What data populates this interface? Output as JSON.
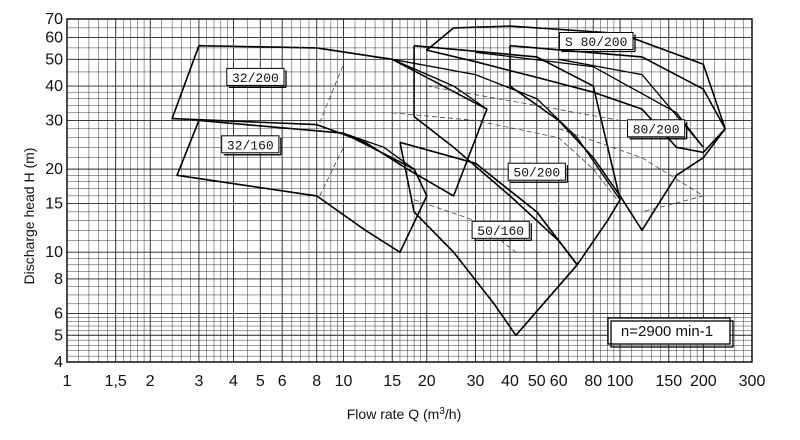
{
  "chart_data": {
    "type": "line",
    "xscale": "log",
    "yscale": "log",
    "xlim": [
      1,
      300
    ],
    "ylim": [
      4,
      70
    ],
    "grid": true,
    "xlabel_text": "Flow rate Q (m",
    "xlabel_sup": "3",
    "xlabel_tail": "/h)",
    "ylabel": "Discharge head H (m)",
    "x_ticks": [
      {
        "value": 1,
        "label": "1"
      },
      {
        "value": 1.5,
        "label": "1,5"
      },
      {
        "value": 2,
        "label": "2"
      },
      {
        "value": 3,
        "label": "3"
      },
      {
        "value": 4,
        "label": "4"
      },
      {
        "value": 5,
        "label": "5"
      },
      {
        "value": 6,
        "label": "6"
      },
      {
        "value": 8,
        "label": "8"
      },
      {
        "value": 10,
        "label": "10"
      },
      {
        "value": 15,
        "label": "15"
      },
      {
        "value": 20,
        "label": "20"
      },
      {
        "value": 30,
        "label": "30"
      },
      {
        "value": 40,
        "label": "40"
      },
      {
        "value": 50,
        "label": "50"
      },
      {
        "value": 60,
        "label": "60"
      },
      {
        "value": 80,
        "label": "80"
      },
      {
        "value": 100,
        "label": "100"
      },
      {
        "value": 150,
        "label": "150"
      },
      {
        "value": 200,
        "label": "200"
      },
      {
        "value": 300,
        "label": "300"
      }
    ],
    "y_ticks": [
      {
        "value": 4,
        "label": "4"
      },
      {
        "value": 5,
        "label": "5"
      },
      {
        "value": 6,
        "label": "6"
      },
      {
        "value": 8,
        "label": "8"
      },
      {
        "value": 10,
        "label": "10"
      },
      {
        "value": 15,
        "label": "15"
      },
      {
        "value": 20,
        "label": "20"
      },
      {
        "value": 30,
        "label": "30"
      },
      {
        "value": 40,
        "label": "40"
      },
      {
        "value": 50,
        "label": "50"
      },
      {
        "value": 60,
        "label": "60"
      },
      {
        "value": 70,
        "label": "70"
      }
    ],
    "x_minor_grid": [
      1.1,
      1.2,
      1.3,
      1.4,
      1.5,
      1.6,
      1.7,
      1.8,
      1.9,
      2,
      2.2,
      2.4,
      2.6,
      2.8,
      3,
      3.2,
      3.4,
      3.6,
      3.8,
      4,
      4.5,
      5,
      5.5,
      6,
      6.5,
      7,
      7.5,
      8,
      8.5,
      9,
      9.5,
      10,
      11,
      12,
      13,
      14,
      15,
      16,
      17,
      18,
      19,
      20,
      22,
      24,
      26,
      28,
      30,
      32,
      34,
      36,
      38,
      40,
      45,
      50,
      55,
      60,
      65,
      70,
      75,
      80,
      85,
      90,
      95,
      100,
      110,
      120,
      130,
      140,
      150,
      160,
      170,
      180,
      190,
      200,
      220,
      240,
      260,
      280,
      300
    ],
    "y_minor_grid": [
      4,
      4.2,
      4.4,
      4.6,
      4.8,
      5,
      5.2,
      5.4,
      5.6,
      5.8,
      6,
      6.5,
      7,
      7.5,
      8,
      8.5,
      9,
      9.5,
      10,
      11,
      12,
      13,
      14,
      15,
      16,
      17,
      18,
      19,
      20,
      22,
      24,
      26,
      28,
      30,
      32,
      34,
      36,
      38,
      40,
      45,
      50,
      55,
      60,
      65,
      70
    ],
    "series": [
      {
        "name": "32/200",
        "label_x": 4.8,
        "label_y": 43,
        "envelope": [
          [
            3,
            56
          ],
          [
            8,
            55
          ],
          [
            15,
            50
          ],
          [
            33,
            33
          ],
          [
            25,
            16
          ],
          [
            17,
            20
          ],
          [
            12,
            25
          ],
          [
            8,
            29
          ],
          [
            2.4,
            30.5
          ],
          [
            3,
            56
          ]
        ],
        "curves": [
          [
            [
              8,
              55
            ],
            [
              15,
              50
            ],
            [
              25,
              40
            ],
            [
              33,
              33
            ]
          ]
        ],
        "dashed": [
          [
            [
              8.2,
              29.5
            ],
            [
              10,
              48
            ]
          ]
        ]
      },
      {
        "name": "32/160",
        "label_x": 4.6,
        "label_y": 24.5,
        "envelope": [
          [
            3,
            30
          ],
          [
            10,
            27
          ],
          [
            18,
            20
          ],
          [
            20,
            16
          ],
          [
            16,
            10
          ],
          [
            12,
            12
          ],
          [
            8,
            16
          ],
          [
            2.5,
            19
          ],
          [
            3,
            30
          ]
        ],
        "curves": [
          [
            [
              10,
              27
            ],
            [
              14,
              24
            ],
            [
              18,
              20
            ]
          ]
        ],
        "dashed": [
          [
            [
              8.2,
              16
            ],
            [
              10,
              24
            ]
          ]
        ]
      },
      {
        "name": "50/200",
        "label_x": 50,
        "label_y": 19.5,
        "envelope": [
          [
            18,
            56
          ],
          [
            50,
            51
          ],
          [
            80,
            40
          ],
          [
            100,
            15.5
          ],
          [
            90,
            13
          ],
          [
            70,
            9
          ],
          [
            60,
            11
          ],
          [
            40,
            16
          ],
          [
            25,
            24
          ],
          [
            18,
            31
          ],
          [
            18,
            56
          ]
        ],
        "curves": [
          [
            [
              15,
              50
            ],
            [
              30,
              44
            ],
            [
              50,
              36
            ],
            [
              70,
              26
            ],
            [
              100,
              15.5
            ]
          ]
        ],
        "dashed": [
          [
            [
              15,
              32
            ],
            [
              30,
              30
            ],
            [
              60,
              26
            ],
            [
              80,
              20
            ],
            [
              100,
              15
            ]
          ]
        ]
      },
      {
        "name": "50/160",
        "label_x": 37,
        "label_y": 12,
        "envelope": [
          [
            16,
            25
          ],
          [
            30,
            21
          ],
          [
            50,
            14
          ],
          [
            70,
            9
          ],
          [
            42,
            5
          ],
          [
            35,
            6.5
          ],
          [
            25,
            10
          ],
          [
            18,
            14
          ],
          [
            16,
            25
          ]
        ],
        "curves": [
          [
            [
              16,
              25
            ],
            [
              30,
              21
            ],
            [
              50,
              14
            ],
            [
              70,
              9
            ]
          ]
        ],
        "dashed": [
          [
            [
              18,
              15.5
            ],
            [
              30,
              13
            ],
            [
              42,
              10
            ]
          ]
        ]
      },
      {
        "name": "80/200",
        "label_x": 135,
        "label_y": 28,
        "envelope": [
          [
            40,
            56
          ],
          [
            120,
            51
          ],
          [
            200,
            39
          ],
          [
            240,
            28
          ],
          [
            200,
            22
          ],
          [
            160,
            19
          ],
          [
            120,
            12
          ],
          [
            100,
            16
          ],
          [
            80,
            22
          ],
          [
            60,
            30
          ],
          [
            40,
            40
          ],
          [
            40,
            56
          ]
        ],
        "curves": [
          [
            [
              60,
              50
            ],
            [
              120,
              44
            ],
            [
              200,
              24
            ]
          ]
        ],
        "dashed": [
          [
            [
              60,
              28
            ],
            [
              120,
              22
            ],
            [
              200,
              16
            ],
            [
              120,
              14
            ]
          ]
        ]
      },
      {
        "name": "S 80/200",
        "label_x": 82,
        "label_y": 58,
        "envelope": [
          [
            25,
            65
          ],
          [
            40,
            66
          ],
          [
            100,
            62
          ],
          [
            200,
            48
          ],
          [
            240,
            28
          ],
          [
            200,
            23
          ],
          [
            160,
            24
          ],
          [
            120,
            33
          ],
          [
            80,
            38
          ],
          [
            50,
            43
          ],
          [
            30,
            49
          ],
          [
            20,
            54
          ],
          [
            25,
            65
          ]
        ],
        "curves": [
          [
            [
              30,
              53
            ],
            [
              80,
              47
            ],
            [
              160,
              32
            ],
            [
              200,
              24
            ]
          ]
        ],
        "dashed": [
          [
            [
              20,
              40
            ],
            [
              50,
              34
            ],
            [
              100,
              30
            ]
          ]
        ]
      }
    ],
    "note": "n=2900 min-1"
  }
}
